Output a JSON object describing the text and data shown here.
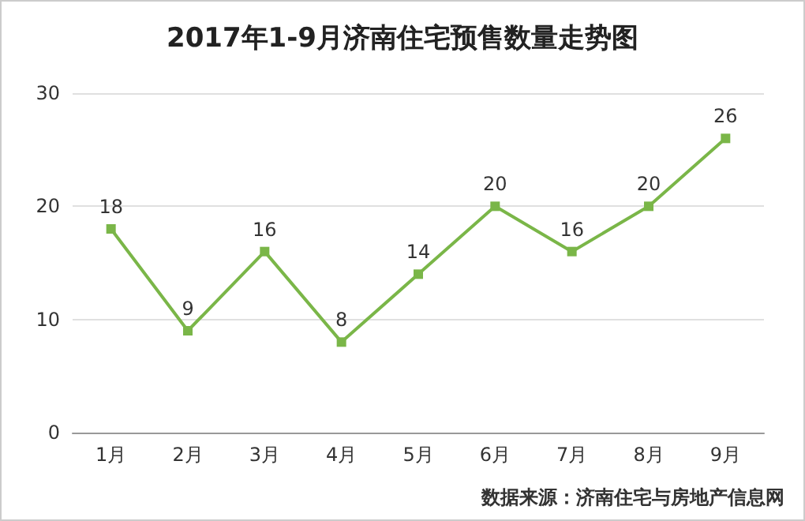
{
  "chart_data": {
    "type": "line",
    "title": "2017年1-9月济南住宅预售数量走势图",
    "categories": [
      "1月",
      "2月",
      "3月",
      "4月",
      "5月",
      "6月",
      "7月",
      "8月",
      "9月"
    ],
    "series": [
      {
        "color": "#7ab648",
        "values": [
          18,
          9,
          16,
          8,
          14,
          20,
          16,
          20,
          26
        ]
      }
    ],
    "ylim": [
      0,
      30
    ],
    "yticks": [
      0,
      10,
      20,
      30
    ],
    "grid": "y",
    "marker": "square",
    "line_style": "solid",
    "data_labels": true,
    "annotations": [
      "数据来源：济南住宅与房地产信息网"
    ]
  }
}
